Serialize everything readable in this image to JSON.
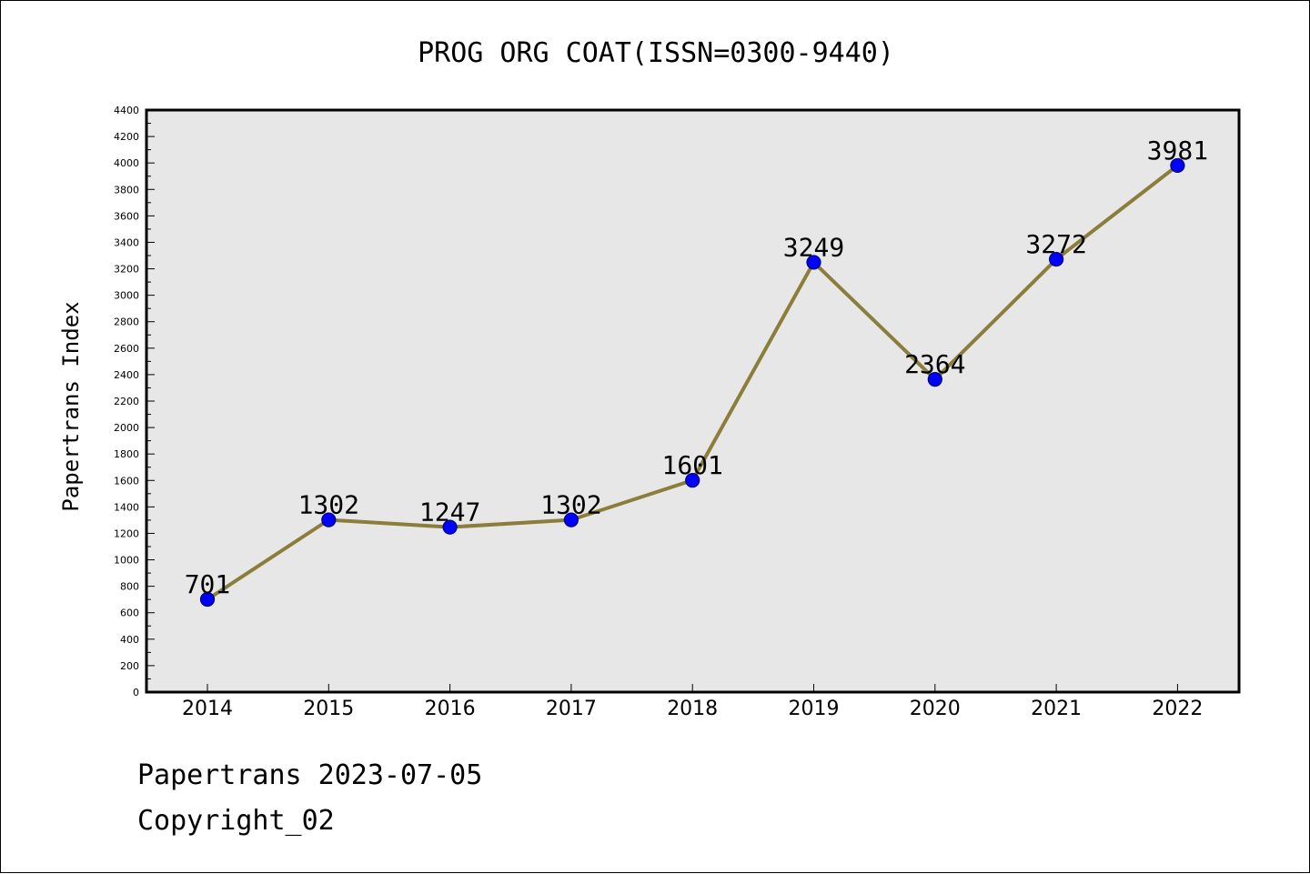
{
  "chart_data": {
    "type": "line",
    "title": "PROG ORG COAT(ISSN=0300-9440)",
    "xlabel": "",
    "ylabel": "Papertrans Index",
    "categories": [
      "2014",
      "2015",
      "2016",
      "2017",
      "2018",
      "2019",
      "2020",
      "2021",
      "2022"
    ],
    "series": [
      {
        "name": "Papertrans Index",
        "values": [
          701,
          1302,
          1247,
          1302,
          1601,
          3249,
          2364,
          3272,
          3981
        ]
      }
    ],
    "data_labels": [
      "701",
      "1302",
      "1247",
      "1302",
      "1601",
      "3249",
      "2364",
      "3272",
      "3981"
    ],
    "ylim": [
      0,
      4400
    ],
    "y_major_step": 200,
    "y_minor_step": 100,
    "y_tick_labels": [
      "0",
      "200",
      "400",
      "600",
      "800",
      "1000",
      "1200",
      "1400",
      "1600",
      "1800",
      "2000",
      "2200",
      "2400",
      "2600",
      "2800",
      "3000",
      "3200",
      "3400",
      "3600",
      "3800",
      "4000",
      "4200",
      "4400"
    ],
    "grid": false,
    "legend": "none",
    "colors": {
      "line": "#8B7D3A",
      "marker_fill": "#0000FF",
      "marker_edge": "#00007A",
      "plot_background": "#E7E7E7",
      "frame": "#000000"
    }
  },
  "footer": {
    "date_line": "Papertrans 2023-07-05",
    "copyright_line": "Copyright_02"
  }
}
